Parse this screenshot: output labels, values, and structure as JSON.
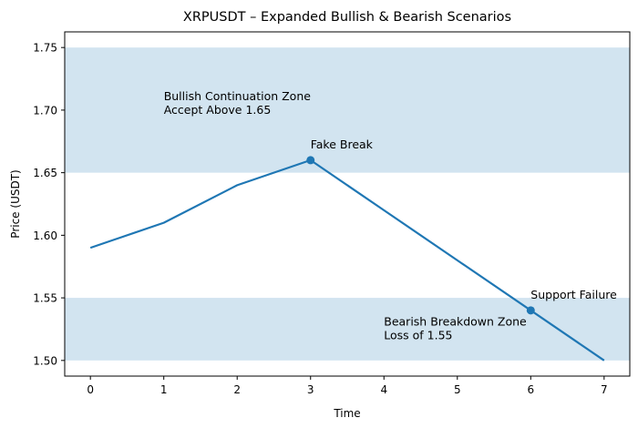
{
  "chart_data": {
    "type": "line",
    "title": "XRPUSDT – Expanded Bullish & Bearish Scenarios",
    "xlabel": "Time",
    "ylabel": "Price (USDT)",
    "xlim": [
      -0.35,
      7.35
    ],
    "ylim": [
      1.4875,
      1.7625
    ],
    "x_ticks": [
      0,
      1,
      2,
      3,
      4,
      5,
      6,
      7
    ],
    "y_ticks": [
      1.5,
      1.55,
      1.6,
      1.65,
      1.7,
      1.75
    ],
    "y_tick_labels": [
      "1.50",
      "1.55",
      "1.60",
      "1.65",
      "1.70",
      "1.75"
    ],
    "grid": false,
    "series": [
      {
        "color": "#1f77b4",
        "x": [
          0,
          1,
          2,
          3,
          4,
          5,
          6,
          7
        ],
        "values": [
          1.59,
          1.61,
          1.64,
          1.66,
          1.62,
          1.58,
          1.54,
          1.5
        ]
      }
    ],
    "bands": [
      {
        "y_from": 1.65,
        "y_to": 1.75,
        "color": "#1f77b4",
        "opacity": 0.2,
        "label_lines": [
          "Bullish Continuation Zone",
          "Accept Above 1.65"
        ],
        "label_x": 1,
        "label_y": 1.7
      },
      {
        "y_from": 1.5,
        "y_to": 1.55,
        "color": "#1f77b4",
        "opacity": 0.2,
        "label_lines": [
          "Bearish Breakdown Zone",
          "Loss of 1.55"
        ],
        "label_x": 4,
        "label_y": 1.52
      }
    ],
    "markers": [
      {
        "x": 3,
        "y": 1.66,
        "label": "Fake Break"
      },
      {
        "x": 6,
        "y": 1.54,
        "label": "Support Failure"
      }
    ]
  }
}
